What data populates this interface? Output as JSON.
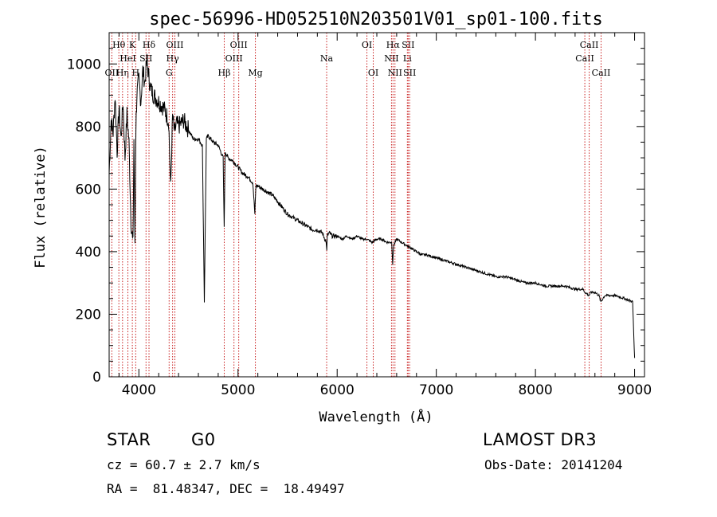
{
  "chart_data": {
    "type": "line",
    "title": "spec-56996-HD052510N203501V01_sp01-100.fits",
    "xlabel": "Wavelength (Å)",
    "ylabel": "Flux (relative)",
    "xlim": [
      3700,
      9100
    ],
    "ylim": [
      0,
      1100
    ],
    "xticks": [
      4000,
      5000,
      6000,
      7000,
      8000,
      9000
    ],
    "yticks": [
      0,
      200,
      400,
      600,
      800,
      1000
    ],
    "series": [
      {
        "name": "flux",
        "x": [
          3700,
          3720,
          3740,
          3760,
          3780,
          3800,
          3820,
          3840,
          3860,
          3880,
          3900,
          3920,
          3940,
          3950,
          3960,
          3970,
          3980,
          4000,
          4020,
          4040,
          4060,
          4080,
          4100,
          4120,
          4150,
          4200,
          4250,
          4300,
          4320,
          4340,
          4360,
          4380,
          4400,
          4450,
          4500,
          4550,
          4600,
          4640,
          4660,
          4680,
          4700,
          4750,
          4800,
          4850,
          4860,
          4870,
          4900,
          4950,
          5000,
          5050,
          5100,
          5150,
          5170,
          5180,
          5200,
          5250,
          5300,
          5350,
          5400,
          5450,
          5500,
          5550,
          5600,
          5650,
          5700,
          5750,
          5800,
          5850,
          5890,
          5895,
          5900,
          5920,
          5950,
          6000,
          6050,
          6100,
          6150,
          6200,
          6250,
          6300,
          6350,
          6400,
          6450,
          6500,
          6550,
          6560,
          6570,
          6600,
          6650,
          6700,
          6750,
          6800,
          6850,
          6900,
          7000,
          7100,
          7200,
          7300,
          7400,
          7500,
          7600,
          7700,
          7800,
          7900,
          8000,
          8100,
          8200,
          8300,
          8400,
          8480,
          8500,
          8540,
          8560,
          8600,
          8640,
          8660,
          8700,
          8800,
          8900,
          8980,
          8990,
          9000
        ],
        "y": [
          650,
          820,
          780,
          900,
          720,
          860,
          760,
          880,
          700,
          840,
          750,
          500,
          420,
          760,
          430,
          800,
          900,
          950,
          880,
          980,
          940,
          1010,
          960,
          920,
          900,
          880,
          860,
          820,
          600,
          830,
          780,
          810,
          800,
          820,
          790,
          760,
          760,
          740,
          240,
          760,
          770,
          750,
          740,
          700,
          480,
          720,
          700,
          690,
          670,
          650,
          640,
          620,
          520,
          610,
          610,
          600,
          590,
          580,
          560,
          540,
          520,
          510,
          500,
          490,
          480,
          470,
          470,
          460,
          430,
          400,
          450,
          460,
          450,
          450,
          440,
          450,
          440,
          450,
          440,
          440,
          430,
          440,
          440,
          430,
          430,
          360,
          420,
          440,
          430,
          420,
          410,
          400,
          390,
          390,
          380,
          370,
          360,
          350,
          340,
          330,
          320,
          320,
          310,
          300,
          300,
          290,
          290,
          290,
          280,
          280,
          270,
          260,
          270,
          270,
          260,
          240,
          260,
          260,
          250,
          240,
          150,
          60
        ]
      }
    ],
    "lines": [
      {
        "name": "OII",
        "wl": 3727,
        "row": 3
      },
      {
        "name": "Hθ",
        "wl": 3798,
        "row": 1
      },
      {
        "name": "Hη",
        "wl": 3835,
        "row": 3
      },
      {
        "name": "HeI",
        "wl": 3889,
        "row": 2
      },
      {
        "name": "K",
        "wl": 3934,
        "row": 1
      },
      {
        "name": "H",
        "wl": 3968,
        "row": 3
      },
      {
        "name": "SII",
        "wl": 4072,
        "row": 2
      },
      {
        "name": "Hδ",
        "wl": 4102,
        "row": 1
      },
      {
        "name": "G",
        "wl": 4305,
        "row": 3
      },
      {
        "name": "Hγ",
        "wl": 4340,
        "row": 2
      },
      {
        "name": "OIII",
        "wl": 4363,
        "row": 1
      },
      {
        "name": "Hβ",
        "wl": 4861,
        "row": 3
      },
      {
        "name": "OIII",
        "wl": 4959,
        "row": 2
      },
      {
        "name": "OIII",
        "wl": 5007,
        "row": 1
      },
      {
        "name": "Mg",
        "wl": 5175,
        "row": 3
      },
      {
        "name": "Na",
        "wl": 5894,
        "row": 2
      },
      {
        "name": "OI",
        "wl": 6300,
        "row": 1
      },
      {
        "name": "OI",
        "wl": 6364,
        "row": 3
      },
      {
        "name": "NII",
        "wl": 6548,
        "row": 2
      },
      {
        "name": "Hα",
        "wl": 6563,
        "row": 1
      },
      {
        "name": "NII",
        "wl": 6583,
        "row": 3
      },
      {
        "name": "Li",
        "wl": 6708,
        "row": 2
      },
      {
        "name": "SII",
        "wl": 6716,
        "row": 1
      },
      {
        "name": "SII",
        "wl": 6731,
        "row": 3
      },
      {
        "name": "CaII",
        "wl": 8498,
        "row": 2
      },
      {
        "name": "CaII",
        "wl": 8542,
        "row": 1
      },
      {
        "name": "CaII",
        "wl": 8662,
        "row": 3
      }
    ]
  },
  "info": {
    "class": "STAR",
    "subclass": "G0",
    "cz": "cz = 60.7 ± 2.7 km/s",
    "radec": "RA =  81.48347, DEC =  18.49497",
    "survey": "LAMOST DR3",
    "obsdate": "Obs-Date: 20141204"
  },
  "colors": {
    "line_marker": "#c81e1e",
    "spectrum": "#000000"
  }
}
